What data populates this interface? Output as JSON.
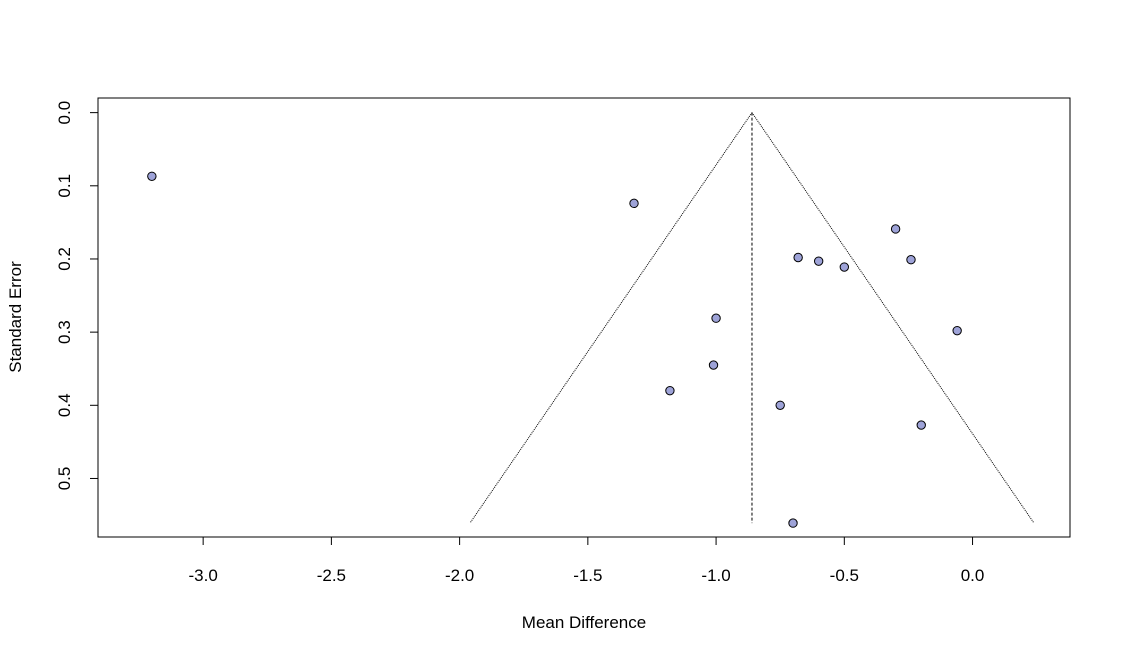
{
  "chart_data": {
    "type": "scatter",
    "title": "",
    "xlabel": "Mean Difference",
    "ylabel": "Standard Error",
    "xlim": [
      -3.41,
      0.38
    ],
    "ylim": [
      0.58,
      -0.02
    ],
    "y_axis_reversed": true,
    "grid": false,
    "x_ticks": [
      -3.0,
      -2.5,
      -2.0,
      -1.5,
      -1.0,
      -0.5,
      0.0
    ],
    "x_tick_labels": [
      "-3.0",
      "-2.5",
      "-2.0",
      "-1.5",
      "-1.0",
      "-0.5",
      "0.0"
    ],
    "y_ticks": [
      0.0,
      0.1,
      0.2,
      0.3,
      0.4,
      0.5
    ],
    "y_tick_labels": [
      "0.0",
      "0.1",
      "0.2",
      "0.3",
      "0.4",
      "0.5"
    ],
    "summary_estimate": -0.86,
    "funnel_max_se": 0.561,
    "point_fill": "#9ea3d8",
    "point_stroke": "#000000",
    "points": [
      {
        "x": -3.2,
        "y": 0.087
      },
      {
        "x": -1.32,
        "y": 0.124
      },
      {
        "x": -0.3,
        "y": 0.159
      },
      {
        "x": -0.68,
        "y": 0.198
      },
      {
        "x": -0.6,
        "y": 0.203
      },
      {
        "x": -0.5,
        "y": 0.211
      },
      {
        "x": -0.24,
        "y": 0.201
      },
      {
        "x": -1.0,
        "y": 0.281
      },
      {
        "x": -0.06,
        "y": 0.298
      },
      {
        "x": -1.01,
        "y": 0.345
      },
      {
        "x": -1.18,
        "y": 0.38
      },
      {
        "x": -0.75,
        "y": 0.4
      },
      {
        "x": -0.2,
        "y": 0.427
      },
      {
        "x": -0.7,
        "y": 0.561
      }
    ]
  }
}
